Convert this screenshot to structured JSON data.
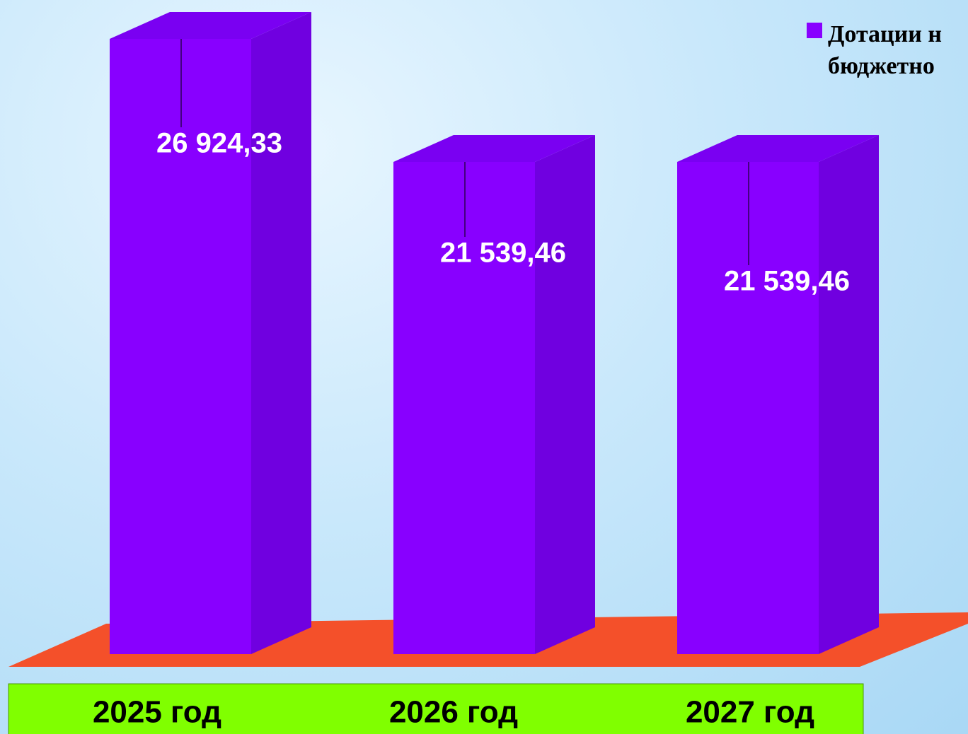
{
  "chart_data": {
    "type": "bar3d",
    "categories": [
      "2025 год",
      "2026 год",
      "2027 год"
    ],
    "series": [
      {
        "name": "Дотации н бюджетно",
        "color": "#8800ff",
        "values": [
          26924.33,
          21539.46,
          21539.46
        ],
        "value_labels": [
          "26 924,33",
          "21 539,46",
          "21 539,46"
        ]
      }
    ]
  }
}
